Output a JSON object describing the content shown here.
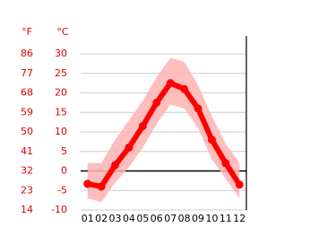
{
  "chart_data": {
    "type": "line",
    "y_label": "°C",
    "y2_label": "°F",
    "categories": [
      "01",
      "02",
      "03",
      "04",
      "05",
      "06",
      "07",
      "08",
      "09",
      "10",
      "11",
      "12"
    ],
    "series": [
      {
        "color": "#ff0000",
        "values": [
          -3.3,
          -4,
          1.5,
          6,
          11.5,
          17.5,
          22.5,
          21,
          16,
          8,
          2,
          -3.5
        ]
      },
      {
        "color": "#ffb3b3",
        "values": [
          2,
          2,
          8,
          13,
          18,
          24,
          29,
          28,
          22,
          14,
          7,
          2
        ]
      },
      {
        "color": "#ffb3b3",
        "values": [
          -7,
          -8,
          -3,
          1,
          6,
          12,
          17,
          16,
          11,
          3,
          -2,
          -7
        ]
      }
    ],
    "ylim": [
      -10,
      30
    ],
    "yticks": [
      30,
      25,
      20,
      15,
      10,
      5,
      0,
      -5,
      -10
    ],
    "y2lim": [
      14,
      86
    ],
    "y2ticks": [
      86,
      77,
      68,
      59,
      50,
      41,
      32,
      23,
      14
    ],
    "grid": true
  }
}
